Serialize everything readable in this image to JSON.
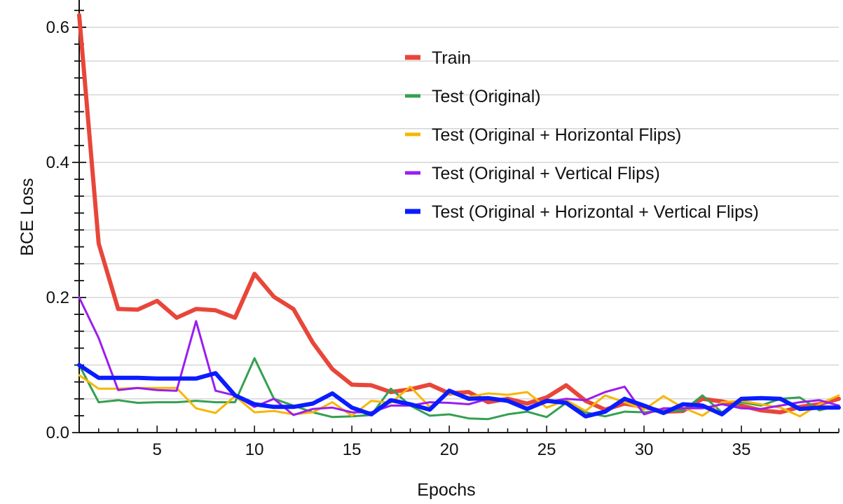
{
  "chart_data": {
    "type": "line",
    "xlabel": "Epochs",
    "ylabel": "BCE Loss",
    "xlim": [
      1,
      40
    ],
    "ylim": [
      0.0,
      0.63
    ],
    "xticks": [
      5,
      10,
      15,
      20,
      25,
      30,
      35
    ],
    "yticks": [
      0.0,
      0.2,
      0.4,
      0.6
    ],
    "ytick_labels": [
      "0.0",
      "0.2",
      "0.4",
      "0.6"
    ],
    "grid": "horizontal",
    "legend_position": "top-right",
    "x": [
      1,
      2,
      3,
      4,
      5,
      6,
      7,
      8,
      9,
      10,
      11,
      12,
      13,
      14,
      15,
      16,
      17,
      18,
      19,
      20,
      21,
      22,
      23,
      24,
      25,
      26,
      27,
      28,
      29,
      30,
      31,
      32,
      33,
      34,
      35,
      36,
      37,
      38,
      39,
      40
    ],
    "series": [
      {
        "name": "Train",
        "color": "#e8463a",
        "width": 6,
        "values": [
          0.618,
          0.28,
          0.183,
          0.182,
          0.195,
          0.17,
          0.183,
          0.181,
          0.17,
          0.235,
          0.201,
          0.183,
          0.133,
          0.094,
          0.071,
          0.07,
          0.06,
          0.064,
          0.071,
          0.058,
          0.06,
          0.045,
          0.05,
          0.043,
          0.052,
          0.07,
          0.047,
          0.034,
          0.043,
          0.038,
          0.031,
          0.032,
          0.05,
          0.046,
          0.04,
          0.033,
          0.03,
          0.038,
          0.042,
          0.05
        ]
      },
      {
        "name": "Test (Original)",
        "color": "#34a04f",
        "width": 3,
        "values": [
          0.1,
          0.045,
          0.048,
          0.044,
          0.045,
          0.045,
          0.047,
          0.045,
          0.045,
          0.11,
          0.05,
          0.04,
          0.03,
          0.023,
          0.024,
          0.026,
          0.065,
          0.04,
          0.025,
          0.027,
          0.021,
          0.02,
          0.027,
          0.031,
          0.023,
          0.044,
          0.03,
          0.024,
          0.031,
          0.03,
          0.032,
          0.032,
          0.055,
          0.03,
          0.045,
          0.04,
          0.05,
          0.052,
          0.033,
          0.04
        ]
      },
      {
        "name": "Test (Original + Horizontal Flips)",
        "color": "#f6b700",
        "width": 3,
        "values": [
          0.085,
          0.065,
          0.065,
          0.066,
          0.066,
          0.066,
          0.036,
          0.029,
          0.054,
          0.03,
          0.032,
          0.027,
          0.03,
          0.045,
          0.025,
          0.047,
          0.044,
          0.068,
          0.038,
          0.058,
          0.053,
          0.058,
          0.056,
          0.06,
          0.037,
          0.048,
          0.032,
          0.055,
          0.045,
          0.034,
          0.054,
          0.037,
          0.025,
          0.045,
          0.047,
          0.042,
          0.037,
          0.024,
          0.042,
          0.055
        ]
      },
      {
        "name": "Test (Original + Vertical Flips)",
        "color": "#9a1df0",
        "width": 3,
        "values": [
          0.2,
          0.14,
          0.063,
          0.066,
          0.063,
          0.062,
          0.165,
          0.062,
          0.055,
          0.038,
          0.05,
          0.026,
          0.035,
          0.037,
          0.03,
          0.03,
          0.04,
          0.04,
          0.045,
          0.044,
          0.042,
          0.05,
          0.048,
          0.035,
          0.045,
          0.05,
          0.048,
          0.06,
          0.068,
          0.027,
          0.036,
          0.036,
          0.036,
          0.042,
          0.036,
          0.035,
          0.04,
          0.045,
          0.048,
          0.04
        ]
      },
      {
        "name": "Test (Original + Horizontal + Vertical Flips)",
        "color": "#0a1cff",
        "width": 6,
        "values": [
          0.1,
          0.081,
          0.081,
          0.081,
          0.08,
          0.08,
          0.08,
          0.088,
          0.055,
          0.042,
          0.038,
          0.038,
          0.043,
          0.058,
          0.037,
          0.027,
          0.048,
          0.042,
          0.034,
          0.062,
          0.05,
          0.051,
          0.047,
          0.035,
          0.047,
          0.044,
          0.024,
          0.031,
          0.05,
          0.04,
          0.029,
          0.042,
          0.04,
          0.027,
          0.05,
          0.051,
          0.05,
          0.035,
          0.037,
          0.037
        ]
      }
    ]
  }
}
